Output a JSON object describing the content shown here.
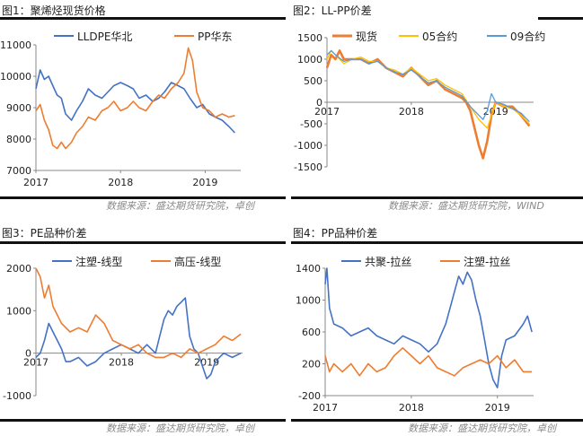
{
  "sources": {
    "s1": "数据来源：盛达期货研究院，卓创",
    "s2": "数据来源：盛达期货研究院，WIND",
    "s3": "数据来源：盛达期货研究院，卓创",
    "s4": "数据来源：盛达期货研究院，卓创"
  },
  "chart_data": [
    {
      "id": "c1",
      "type": "line",
      "title": "图1：聚烯烃现货价格",
      "xlabel": "",
      "ylabel": "",
      "ylim": [
        7000,
        11000
      ],
      "yticks": [
        7000,
        8000,
        9000,
        10000,
        11000
      ],
      "xlim": [
        2017.0,
        2019.42
      ],
      "xticks": [
        2017,
        2018,
        2019
      ],
      "grid": false,
      "legend": "top",
      "series": [
        {
          "name": "LLDPE华北",
          "color": "#4472C4",
          "x": [
            2017.0,
            2017.05,
            2017.1,
            2017.15,
            2017.2,
            2017.25,
            2017.3,
            2017.35,
            2017.42,
            2017.48,
            2017.55,
            2017.62,
            2017.7,
            2017.78,
            2017.85,
            2017.92,
            2018.0,
            2018.08,
            2018.15,
            2018.22,
            2018.3,
            2018.38,
            2018.45,
            2018.52,
            2018.6,
            2018.68,
            2018.75,
            2018.82,
            2018.9,
            2018.97,
            2019.05,
            2019.12,
            2019.2,
            2019.28,
            2019.35
          ],
          "y": [
            9600,
            10200,
            9900,
            10000,
            9700,
            9400,
            9300,
            8800,
            8600,
            8900,
            9200,
            9600,
            9400,
            9300,
            9500,
            9700,
            9800,
            9700,
            9600,
            9300,
            9400,
            9200,
            9300,
            9500,
            9800,
            9700,
            9600,
            9300,
            9000,
            9100,
            8800,
            8700,
            8600,
            8400,
            8200
          ]
        },
        {
          "name": "PP华东",
          "color": "#ED7D31",
          "x": [
            2017.0,
            2017.05,
            2017.1,
            2017.15,
            2017.2,
            2017.25,
            2017.3,
            2017.35,
            2017.42,
            2017.48,
            2017.55,
            2017.62,
            2017.7,
            2017.78,
            2017.85,
            2017.92,
            2018.0,
            2018.08,
            2018.15,
            2018.22,
            2018.3,
            2018.38,
            2018.45,
            2018.52,
            2018.6,
            2018.68,
            2018.75,
            2018.8,
            2018.85,
            2018.9,
            2018.97,
            2019.05,
            2019.12,
            2019.2,
            2019.28,
            2019.35
          ],
          "y": [
            8900,
            9100,
            8600,
            8300,
            7800,
            7700,
            7900,
            7700,
            7900,
            8200,
            8400,
            8700,
            8600,
            8900,
            9000,
            9200,
            8900,
            9000,
            9200,
            9000,
            8900,
            9200,
            9400,
            9300,
            9600,
            9800,
            10100,
            10900,
            10500,
            9500,
            9000,
            8900,
            8700,
            8800,
            8700,
            8750
          ]
        }
      ]
    },
    {
      "id": "c2",
      "type": "line",
      "title": "图2：LL-PP价差",
      "xlabel": "",
      "ylabel": "",
      "ylim": [
        -1500,
        1500
      ],
      "yticks": [
        -1500,
        -1000,
        -500,
        0,
        500,
        1000,
        1500
      ],
      "xlim": [
        2017.0,
        2019.45
      ],
      "xticks": [
        2017,
        2018,
        2019
      ],
      "grid": false,
      "legend": "top",
      "series": [
        {
          "name": "现货",
          "color": "#ED7D31",
          "x": [
            2017.0,
            2017.05,
            2017.1,
            2017.15,
            2017.2,
            2017.3,
            2017.4,
            2017.5,
            2017.6,
            2017.7,
            2017.8,
            2017.9,
            2018.0,
            2018.1,
            2018.2,
            2018.3,
            2018.4,
            2018.5,
            2018.6,
            2018.65,
            2018.7,
            2018.75,
            2018.8,
            2018.85,
            2018.9,
            2018.95,
            2019.0,
            2019.1,
            2019.2,
            2019.3,
            2019.4
          ],
          "y": [
            800,
            1100,
            1000,
            1200,
            1000,
            1000,
            1000,
            900,
            1000,
            800,
            700,
            600,
            800,
            600,
            400,
            500,
            300,
            200,
            100,
            0,
            -200,
            -600,
            -1000,
            -1300,
            -900,
            -300,
            0,
            -100,
            -100,
            -300,
            -550
          ]
        },
        {
          "name": "05合约",
          "color": "#FFC000",
          "x": [
            2017.0,
            2017.05,
            2017.1,
            2017.2,
            2017.3,
            2017.4,
            2017.5,
            2017.6,
            2017.7,
            2017.8,
            2017.9,
            2018.0,
            2018.1,
            2018.2,
            2018.3,
            2018.4,
            2018.5,
            2018.6,
            2018.7,
            2018.8,
            2018.9,
            2018.95,
            2019.0,
            2019.1,
            2019.2,
            2019.3,
            2019.4
          ],
          "y": [
            1000,
            1200,
            1100,
            900,
            1000,
            1050,
            950,
            950,
            800,
            750,
            650,
            800,
            650,
            500,
            550,
            400,
            300,
            200,
            -100,
            -400,
            -600,
            -300,
            0,
            -100,
            -150,
            -300,
            -500
          ]
        },
        {
          "name": "09合约",
          "color": "#5B9BD5",
          "x": [
            2017.0,
            2017.05,
            2017.1,
            2017.2,
            2017.3,
            2017.4,
            2017.5,
            2017.6,
            2017.7,
            2017.8,
            2017.9,
            2018.0,
            2018.1,
            2018.2,
            2018.3,
            2018.4,
            2018.5,
            2018.6,
            2018.7,
            2018.8,
            2018.85,
            2018.9,
            2018.95,
            2019.0,
            2019.1,
            2019.2,
            2019.3,
            2019.4
          ],
          "y": [
            1100,
            1200,
            1100,
            950,
            1000,
            1000,
            900,
            950,
            800,
            700,
            650,
            750,
            600,
            450,
            500,
            350,
            250,
            150,
            -100,
            -300,
            -400,
            -200,
            200,
            0,
            -50,
            -150,
            -250,
            -450
          ]
        }
      ]
    },
    {
      "id": "c3",
      "type": "line",
      "title": "图3：PE品种价差",
      "xlabel": "",
      "ylabel": "",
      "ylim": [
        -1000,
        2000
      ],
      "yticks": [
        -1000,
        0,
        1000,
        2000
      ],
      "xlim": [
        2017.0,
        2019.42
      ],
      "xticks": [
        2017,
        2018,
        2019
      ],
      "grid": false,
      "legend": "top",
      "series": [
        {
          "name": "注塑-线型",
          "color": "#4472C4",
          "x": [
            2017.0,
            2017.05,
            2017.1,
            2017.15,
            2017.2,
            2017.25,
            2017.3,
            2017.35,
            2017.4,
            2017.5,
            2017.6,
            2017.7,
            2017.8,
            2017.9,
            2018.0,
            2018.1,
            2018.2,
            2018.3,
            2018.4,
            2018.45,
            2018.5,
            2018.55,
            2018.6,
            2018.65,
            2018.7,
            2018.75,
            2018.8,
            2018.85,
            2018.9,
            2018.95,
            2019.0,
            2019.05,
            2019.1,
            2019.2,
            2019.3,
            2019.4
          ],
          "y": [
            -100,
            0,
            300,
            700,
            500,
            300,
            100,
            -200,
            -200,
            -100,
            -300,
            -200,
            0,
            100,
            200,
            100,
            0,
            200,
            0,
            400,
            800,
            1000,
            900,
            1100,
            1200,
            1300,
            400,
            100,
            0,
            -300,
            -600,
            -500,
            -200,
            0,
            -100,
            0
          ]
        },
        {
          "name": "高压-线型",
          "color": "#ED7D31",
          "x": [
            2017.0,
            2017.05,
            2017.1,
            2017.15,
            2017.2,
            2017.25,
            2017.3,
            2017.4,
            2017.5,
            2017.6,
            2017.7,
            2017.8,
            2017.9,
            2018.0,
            2018.1,
            2018.2,
            2018.3,
            2018.4,
            2018.5,
            2018.6,
            2018.7,
            2018.8,
            2018.9,
            2019.0,
            2019.1,
            2019.2,
            2019.3,
            2019.4
          ],
          "y": [
            2000,
            1800,
            1300,
            1600,
            1100,
            900,
            700,
            500,
            600,
            500,
            900,
            700,
            300,
            200,
            100,
            200,
            0,
            -100,
            -100,
            0,
            -100,
            100,
            0,
            100,
            200,
            400,
            300,
            450
          ]
        }
      ]
    },
    {
      "id": "c4",
      "type": "line",
      "title": "图4：PP品种价差",
      "xlabel": "",
      "ylabel": "",
      "ylim": [
        -200,
        1400
      ],
      "yticks": [
        -200,
        200,
        600,
        1000,
        1400
      ],
      "xlim": [
        2017.0,
        2019.42
      ],
      "xticks": [
        2017,
        2018,
        2019
      ],
      "grid": false,
      "legend": "top",
      "series": [
        {
          "name": "共聚-拉丝",
          "color": "#4472C4",
          "x": [
            2017.0,
            2017.02,
            2017.05,
            2017.1,
            2017.2,
            2017.3,
            2017.4,
            2017.5,
            2017.6,
            2017.7,
            2017.8,
            2017.9,
            2018.0,
            2018.1,
            2018.2,
            2018.3,
            2018.4,
            2018.45,
            2018.5,
            2018.55,
            2018.6,
            2018.65,
            2018.7,
            2018.75,
            2018.8,
            2018.85,
            2018.9,
            2018.95,
            2019.0,
            2019.05,
            2019.1,
            2019.2,
            2019.3,
            2019.35,
            2019.4
          ],
          "y": [
            1200,
            1400,
            900,
            700,
            650,
            550,
            600,
            650,
            550,
            500,
            450,
            550,
            500,
            450,
            350,
            450,
            700,
            900,
            1100,
            1300,
            1200,
            1350,
            1250,
            1000,
            800,
            500,
            200,
            0,
            -100,
            300,
            500,
            550,
            700,
            800,
            600
          ]
        },
        {
          "name": "注塑-拉丝",
          "color": "#ED7D31",
          "x": [
            2017.0,
            2017.05,
            2017.1,
            2017.2,
            2017.3,
            2017.4,
            2017.5,
            2017.6,
            2017.7,
            2017.8,
            2017.9,
            2018.0,
            2018.1,
            2018.2,
            2018.3,
            2018.4,
            2018.5,
            2018.6,
            2018.7,
            2018.8,
            2018.9,
            2019.0,
            2019.1,
            2019.2,
            2019.3,
            2019.4
          ],
          "y": [
            300,
            100,
            200,
            100,
            200,
            50,
            200,
            100,
            150,
            300,
            400,
            300,
            200,
            300,
            150,
            100,
            50,
            150,
            200,
            250,
            200,
            300,
            150,
            250,
            100,
            100
          ]
        }
      ]
    }
  ]
}
